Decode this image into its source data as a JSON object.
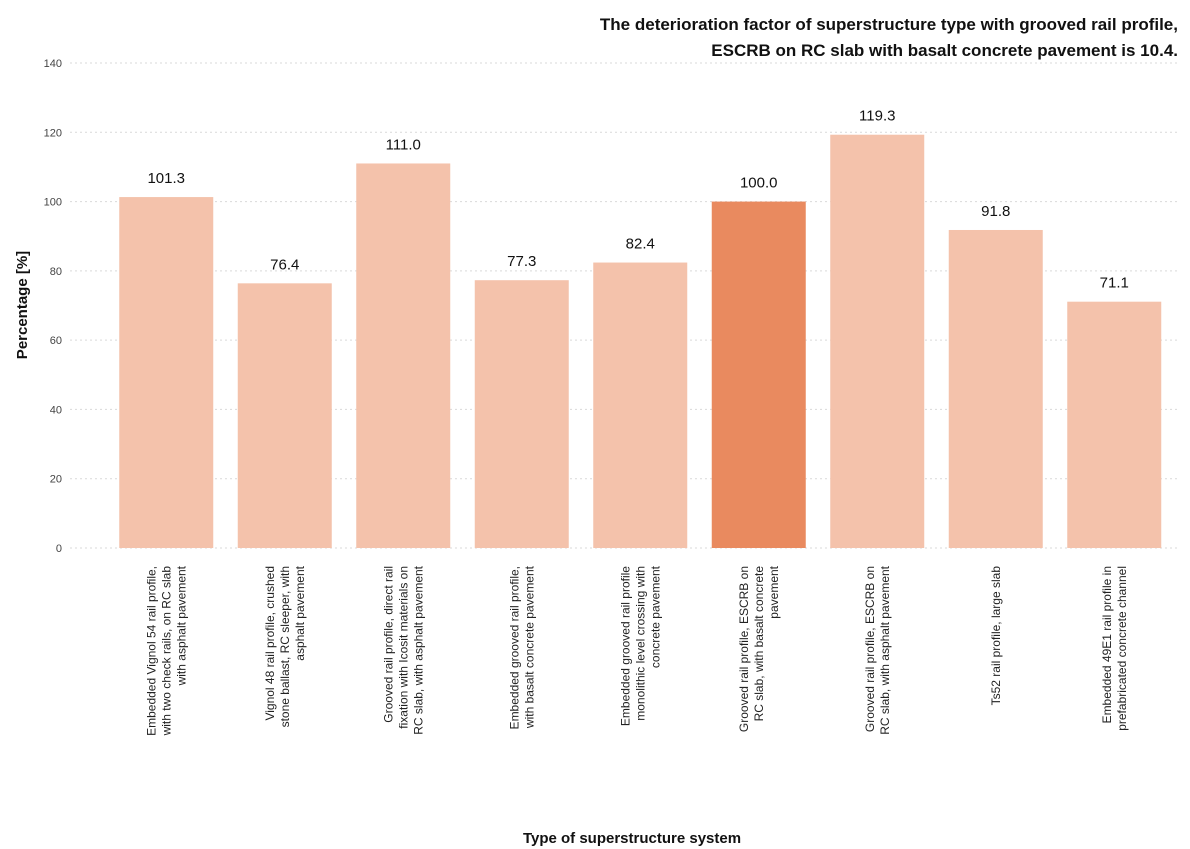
{
  "chart_data": {
    "type": "bar",
    "title_lines": [
      "The deterioration factor of superstructure type with grooved rail profile,",
      "ESCRB on RC slab with basalt concrete pavement is 10.4."
    ],
    "xlabel": "Type of superstructure system",
    "ylabel": "Percentage [%]",
    "ylim": [
      0,
      140
    ],
    "yticks": [
      0,
      20,
      40,
      60,
      80,
      100,
      120,
      140
    ],
    "grid": "horizontal dotted",
    "categories": [
      [
        "Embedded Vignol 54 rail profile,",
        "with two check rails, on RC slab",
        "with asphalt pavement"
      ],
      [
        "Vignol 48 rail profile, crushed",
        "stone ballast, RC sleeper, with",
        "asphalt pavement"
      ],
      [
        "Grooved rail profile, direct rail",
        "fixation with Icosit materials on",
        "RC slab, with asphalt pavement"
      ],
      [
        "Embedded grooved rail profile,",
        "with basalt concrete pavement"
      ],
      [
        "Embedded grooved rail profile",
        "monolithic level crossing with",
        "concrete pavement"
      ],
      [
        "Grooved rail profile, ESCRB on",
        "RC slab, with basalt concrete",
        "pavement"
      ],
      [
        "Grooved rail profile, ESCRB on",
        "RC slab, with asphalt pavement"
      ],
      [
        "Ts52 rail profile, large slab"
      ],
      [
        "Embedded 49E1 rail profile in",
        "prefabricated concrete channel"
      ]
    ],
    "values": [
      101.3,
      76.4,
      111.0,
      77.3,
      82.4,
      100.0,
      119.3,
      91.8,
      71.1
    ],
    "value_labels": [
      "101.3",
      "76.4",
      "111.0",
      "77.3",
      "82.4",
      "100.0",
      "119.3",
      "91.8",
      "71.1"
    ],
    "highlight_index": 5,
    "colors": {
      "bar": "#f4c2ab",
      "highlight": "#e98a5f",
      "grid": "#d9d9d9"
    }
  }
}
